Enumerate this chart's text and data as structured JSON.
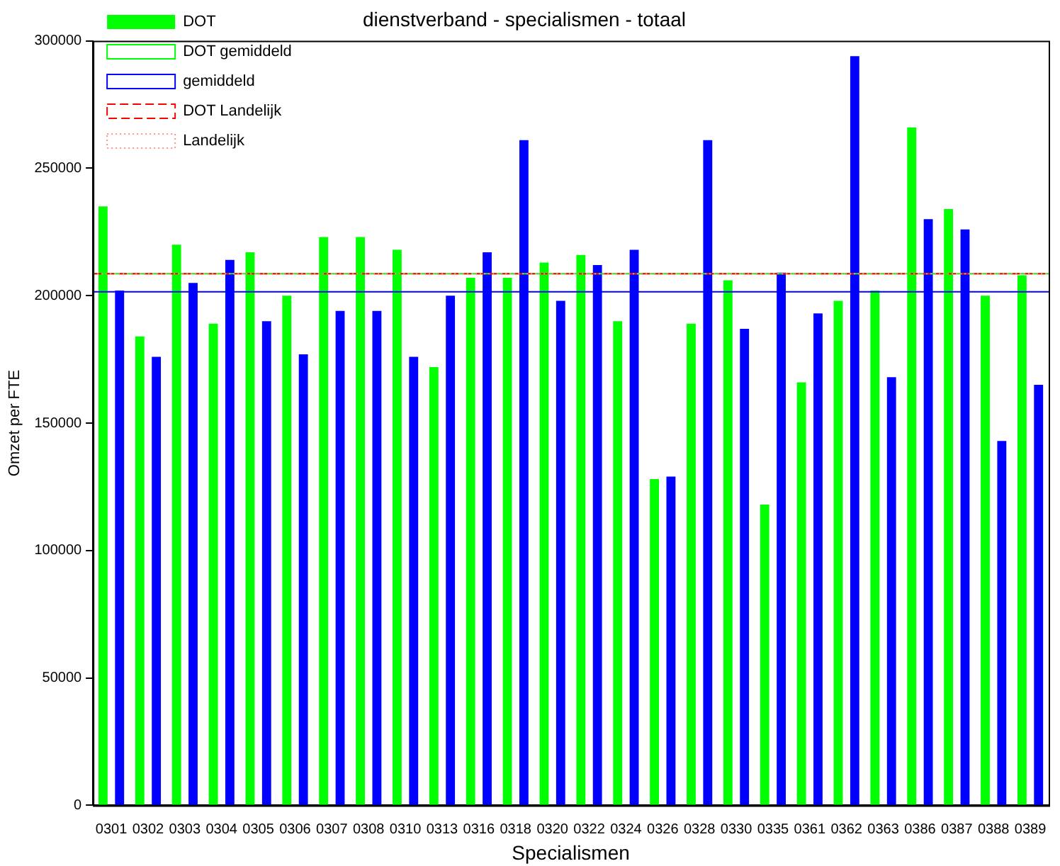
{
  "chart_data": {
    "type": "bar",
    "title": "dienstverband - specialismen - totaal",
    "xlabel": "Specialismen",
    "ylabel": "Omzet per FTE",
    "categories": [
      "0301",
      "0302",
      "0303",
      "0304",
      "0305",
      "0306",
      "0307",
      "0308",
      "0310",
      "0313",
      "0316",
      "0318",
      "0320",
      "0322",
      "0324",
      "0326",
      "0328",
      "0330",
      "0335",
      "0361",
      "0362",
      "0363",
      "0386",
      "0387",
      "0388",
      "0389"
    ],
    "series": [
      {
        "name": "DOT",
        "color": "#00ff00",
        "values": [
          235000,
          184000,
          220000,
          189000,
          217000,
          200000,
          223000,
          223000,
          218000,
          172000,
          207000,
          207000,
          213000,
          216000,
          190000,
          128000,
          189000,
          206000,
          118000,
          166000,
          198000,
          202000,
          266000,
          234000,
          200000,
          208000
        ]
      },
      {
        "color": "#0000ff",
        "values": [
          202000,
          176000,
          205000,
          214000,
          190000,
          177000,
          194000,
          194000,
          176000,
          200000,
          217000,
          261000,
          198000,
          212000,
          218000,
          129000,
          261000,
          187000,
          209000,
          193000,
          294000,
          168000,
          230000,
          226000,
          143000,
          165000
        ]
      }
    ],
    "ylim": [
      0,
      300000
    ],
    "yticks": [
      0,
      50000,
      100000,
      150000,
      200000,
      250000,
      300000
    ],
    "ref_lines": [
      {
        "axis": "y",
        "value": 208600,
        "label": "DOT gemiddeld",
        "color": "#00ff00",
        "line_style": "solid"
      },
      {
        "axis": "y",
        "value": 201500,
        "label": "gemiddeld",
        "color": "#0000ff",
        "line_style": "solid"
      },
      {
        "axis": "y",
        "value": 208600,
        "label": "DOT Landelijk",
        "color": "#ff0000",
        "line_style": "dashed"
      },
      {
        "axis": "y",
        "value": 208600,
        "label": "Landelijk",
        "color": "#ff9090",
        "line_style": "dotted"
      }
    ],
    "grid": false,
    "legend": "top left"
  }
}
